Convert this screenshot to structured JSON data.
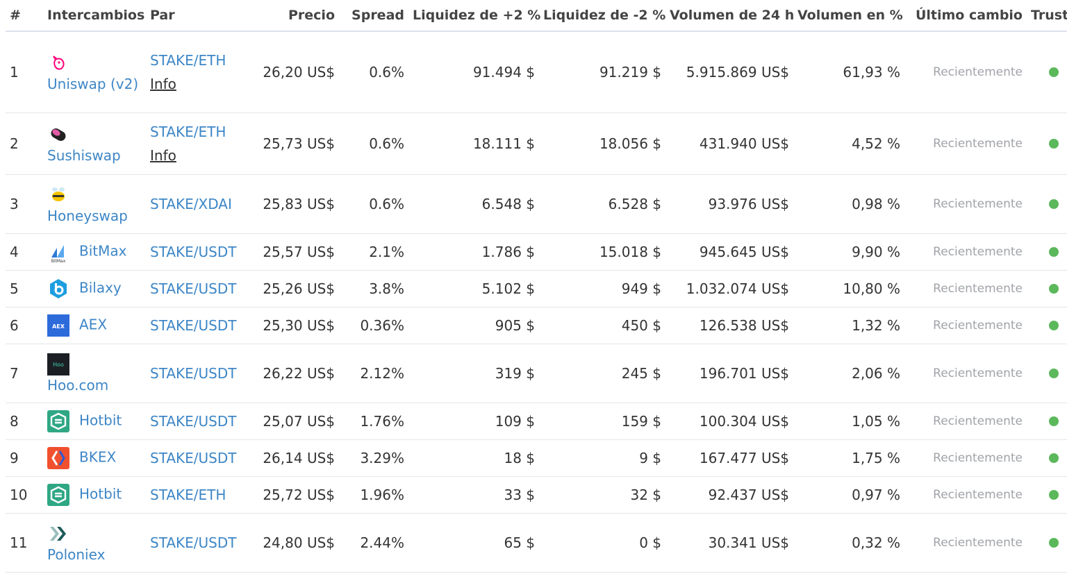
{
  "headers": {
    "rank": "#",
    "exchange": "Intercambios",
    "pair": "Par",
    "price": "Precio",
    "spread": "Spread",
    "liq_plus": "Liquidez de +2 %",
    "liq_minus": "Liquidez de -2 %",
    "volume": "Volumen de 24 h",
    "volume_pct": "Volumen en %",
    "last_change": "Último cambio",
    "trust": "Trust"
  },
  "rows": [
    {
      "rank": "1",
      "exchange": "Uniswap (v2)",
      "pair": "STAKE/ETH",
      "info": "Info",
      "price": "26,20 US$",
      "spread": "0.6%",
      "liq_plus": "91.494 $",
      "liq_minus": "91.219 $",
      "volume": "5.915.869 US$",
      "volume_pct": "61,93 %",
      "last": "Recientemente",
      "icon": "uniswap-unicorn-icon",
      "color": "#ff007a"
    },
    {
      "rank": "2",
      "exchange": "Sushiswap",
      "pair": "STAKE/ETH",
      "info": "Info",
      "price": "25,73 US$",
      "spread": "0.6%",
      "liq_plus": "18.111 $",
      "liq_minus": "18.056 $",
      "volume": "431.940 US$",
      "volume_pct": "4,52 %",
      "last": "Recientemente",
      "icon": "sushiswap-icon",
      "color": "#e05ba6"
    },
    {
      "rank": "3",
      "exchange": "Honeyswap",
      "pair": "STAKE/XDAI",
      "info": "",
      "price": "25,83 US$",
      "spread": "0.6%",
      "liq_plus": "6.548 $",
      "liq_minus": "6.528 $",
      "volume": "93.976 US$",
      "volume_pct": "0,98 %",
      "last": "Recientemente",
      "icon": "honeyswap-bee-icon",
      "color": "#f5c400"
    },
    {
      "rank": "4",
      "exchange": "BitMax",
      "pair": "STAKE/USDT",
      "info": "",
      "price": "25,57 US$",
      "spread": "2.1%",
      "liq_plus": "1.786 $",
      "liq_minus": "15.018 $",
      "volume": "945.645 US$",
      "volume_pct": "9,90 %",
      "last": "Recientemente",
      "icon": "bitmax-icon",
      "color": "#2d7bd4"
    },
    {
      "rank": "5",
      "exchange": "Bilaxy",
      "pair": "STAKE/USDT",
      "info": "",
      "price": "25,26 US$",
      "spread": "3.8%",
      "liq_plus": "5.102 $",
      "liq_minus": "949 $",
      "volume": "1.032.074 US$",
      "volume_pct": "10,80 %",
      "last": "Recientemente",
      "icon": "bilaxy-icon",
      "color": "#1e9ee0"
    },
    {
      "rank": "6",
      "exchange": "AEX",
      "pair": "STAKE/USDT",
      "info": "",
      "price": "25,30 US$",
      "spread": "0.36%",
      "liq_plus": "905 $",
      "liq_minus": "450 $",
      "volume": "126.538 US$",
      "volume_pct": "1,32 %",
      "last": "Recientemente",
      "icon": "aex-icon",
      "color": "#2d6bdb"
    },
    {
      "rank": "7",
      "exchange": "Hoo.com",
      "pair": "STAKE/USDT",
      "info": "",
      "price": "26,22 US$",
      "spread": "2.12%",
      "liq_plus": "319 $",
      "liq_minus": "245 $",
      "volume": "196.701 US$",
      "volume_pct": "2,06 %",
      "last": "Recientemente",
      "icon": "hoo-icon",
      "color": "#1b1f24"
    },
    {
      "rank": "8",
      "exchange": "Hotbit",
      "pair": "STAKE/USDT",
      "info": "",
      "price": "25,07 US$",
      "spread": "1.76%",
      "liq_plus": "109 $",
      "liq_minus": "159 $",
      "volume": "100.304 US$",
      "volume_pct": "1,05 %",
      "last": "Recientemente",
      "icon": "hotbit-icon",
      "color": "#2fa784"
    },
    {
      "rank": "9",
      "exchange": "BKEX",
      "pair": "STAKE/USDT",
      "info": "",
      "price": "26,14 US$",
      "spread": "3.29%",
      "liq_plus": "18 $",
      "liq_minus": "9 $",
      "volume": "167.477 US$",
      "volume_pct": "1,75 %",
      "last": "Recientemente",
      "icon": "bkex-icon",
      "color": "#f0502e"
    },
    {
      "rank": "10",
      "exchange": "Hotbit",
      "pair": "STAKE/ETH",
      "info": "",
      "price": "25,72 US$",
      "spread": "1.96%",
      "liq_plus": "33 $",
      "liq_minus": "32 $",
      "volume": "92.437 US$",
      "volume_pct": "0,97 %",
      "last": "Recientemente",
      "icon": "hotbit-icon",
      "color": "#2fa784"
    },
    {
      "rank": "11",
      "exchange": "Poloniex",
      "pair": "STAKE/USDT",
      "info": "",
      "price": "24,80 US$",
      "spread": "2.44%",
      "liq_plus": "65 $",
      "liq_minus": "0 $",
      "volume": "30.341 US$",
      "volume_pct": "0,32 %",
      "last": "Recientemente",
      "icon": "poloniex-icon",
      "color": "#1f5a5a"
    }
  ],
  "trust_color": "#5bb85b"
}
